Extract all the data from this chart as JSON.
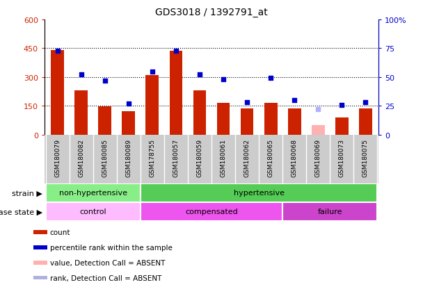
{
  "title": "GDS3018 / 1392791_at",
  "samples": [
    "GSM180079",
    "GSM180082",
    "GSM180085",
    "GSM180089",
    "GSM178755",
    "GSM180057",
    "GSM180059",
    "GSM180061",
    "GSM180062",
    "GSM180065",
    "GSM180068",
    "GSM180069",
    "GSM180073",
    "GSM180075"
  ],
  "counts": [
    440,
    230,
    148,
    120,
    310,
    437,
    230,
    165,
    135,
    165,
    135,
    50,
    90,
    135
  ],
  "counts_absent": [
    null,
    null,
    null,
    null,
    null,
    null,
    null,
    null,
    null,
    null,
    null,
    50,
    null,
    null
  ],
  "percentiles": [
    73,
    52,
    47,
    27,
    55,
    73,
    52,
    48,
    28,
    49,
    30,
    22,
    26,
    28
  ],
  "percentiles_absent": [
    null,
    null,
    null,
    null,
    null,
    null,
    null,
    null,
    null,
    null,
    null,
    22,
    null,
    null
  ],
  "ylim_left": [
    0,
    600
  ],
  "ylim_right": [
    0,
    100
  ],
  "yticks_left": [
    0,
    150,
    300,
    450,
    600
  ],
  "yticks_right": [
    0,
    25,
    50,
    75,
    100
  ],
  "bar_color": "#cc2200",
  "bar_absent_color": "#ffb0b0",
  "dot_color": "#0000cc",
  "dot_absent_color": "#b0b0ff",
  "strain_groups": [
    {
      "label": "non-hypertensive",
      "start": 0,
      "end": 4,
      "color": "#88ee88"
    },
    {
      "label": "hypertensive",
      "start": 4,
      "end": 14,
      "color": "#55cc55"
    }
  ],
  "disease_groups": [
    {
      "label": "control",
      "start": 0,
      "end": 4,
      "color": "#ffbbff"
    },
    {
      "label": "compensated",
      "start": 4,
      "end": 10,
      "color": "#ee55ee"
    },
    {
      "label": "failure",
      "start": 10,
      "end": 14,
      "color": "#cc44cc"
    }
  ],
  "legend_items": [
    {
      "label": "count",
      "color": "#cc2200"
    },
    {
      "label": "percentile rank within the sample",
      "color": "#0000cc"
    },
    {
      "label": "value, Detection Call = ABSENT",
      "color": "#ffb0b0"
    },
    {
      "label": "rank, Detection Call = ABSENT",
      "color": "#b0b0dd"
    }
  ],
  "absent_index": 11,
  "xticklabel_bg": "#cccccc",
  "plot_bg": "white"
}
